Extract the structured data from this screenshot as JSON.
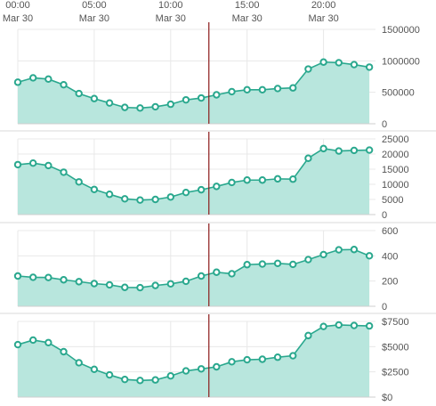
{
  "x_axis": {
    "ticks": [
      {
        "time": "00:00",
        "date": "Mar 30",
        "hour": 0
      },
      {
        "time": "05:00",
        "date": "Mar 30",
        "hour": 5
      },
      {
        "time": "10:00",
        "date": "Mar 30",
        "hour": 10
      },
      {
        "time": "15:00",
        "date": "Mar 30",
        "hour": 15
      },
      {
        "time": "20:00",
        "date": "Mar 30",
        "hour": 20
      }
    ]
  },
  "cursor_hour": 12.5,
  "colors": {
    "line": "#2aa88e",
    "fill": "#b8e6dd",
    "cursor": "#8b1a1a",
    "grid": "#e8e8e8",
    "separator": "#d9d9d9"
  },
  "chart_data": [
    {
      "type": "area",
      "x": [
        0,
        1,
        2,
        3,
        4,
        5,
        6,
        7,
        8,
        9,
        10,
        11,
        12,
        13,
        14,
        15,
        16,
        17,
        18,
        19,
        20,
        21,
        22,
        23
      ],
      "values": [
        660000,
        730000,
        710000,
        620000,
        480000,
        400000,
        330000,
        260000,
        250000,
        270000,
        310000,
        380000,
        410000,
        460000,
        510000,
        540000,
        540000,
        560000,
        570000,
        870000,
        980000,
        970000,
        940000,
        900000
      ],
      "ylim": [
        0,
        1500000
      ],
      "yticks": [
        0,
        500000,
        1000000,
        1500000
      ],
      "ytick_labels": [
        "0",
        "500000",
        "1000000",
        "1500000"
      ],
      "grid": true
    },
    {
      "type": "area",
      "x": [
        0,
        1,
        2,
        3,
        4,
        5,
        6,
        7,
        8,
        9,
        10,
        11,
        12,
        13,
        14,
        15,
        16,
        17,
        18,
        19,
        20,
        21,
        22,
        23
      ],
      "values": [
        16500,
        17000,
        16200,
        14000,
        10800,
        8300,
        6700,
        5200,
        4800,
        5000,
        5800,
        7300,
        8200,
        9300,
        10600,
        11400,
        11400,
        11800,
        11700,
        18600,
        21800,
        21000,
        21200,
        21300
      ],
      "ylim": [
        0,
        25000
      ],
      "yticks": [
        0,
        5000,
        10000,
        15000,
        20000,
        25000
      ],
      "ytick_labels": [
        "0",
        "5000",
        "10000",
        "15000",
        "20000",
        "25000"
      ],
      "grid": true
    },
    {
      "type": "area",
      "x": [
        0,
        1,
        2,
        3,
        4,
        5,
        6,
        7,
        8,
        9,
        10,
        11,
        12,
        13,
        14,
        15,
        16,
        17,
        18,
        19,
        20,
        21,
        22,
        23
      ],
      "values": [
        240,
        230,
        228,
        210,
        195,
        180,
        170,
        150,
        148,
        165,
        178,
        198,
        240,
        270,
        258,
        330,
        335,
        340,
        332,
        370,
        410,
        448,
        450,
        400
      ],
      "ylim": [
        0,
        600
      ],
      "yticks": [
        0,
        200,
        400,
        600
      ],
      "ytick_labels": [
        "0",
        "200",
        "400",
        "600"
      ],
      "grid": true
    },
    {
      "type": "area",
      "x": [
        0,
        1,
        2,
        3,
        4,
        5,
        6,
        7,
        8,
        9,
        10,
        11,
        12,
        13,
        14,
        15,
        16,
        17,
        18,
        19,
        20,
        21,
        22,
        23
      ],
      "values": [
        5200,
        5650,
        5400,
        4500,
        3400,
        2750,
        2200,
        1750,
        1650,
        1700,
        2100,
        2600,
        2800,
        3000,
        3500,
        3700,
        3750,
        3950,
        4100,
        6100,
        7000,
        7150,
        7100,
        7050
      ],
      "ylim": [
        0,
        7500
      ],
      "yticks": [
        0,
        2500,
        5000,
        7500
      ],
      "ytick_labels": [
        "$0",
        "$2500",
        "$5000",
        "$7500"
      ],
      "grid": true
    }
  ]
}
